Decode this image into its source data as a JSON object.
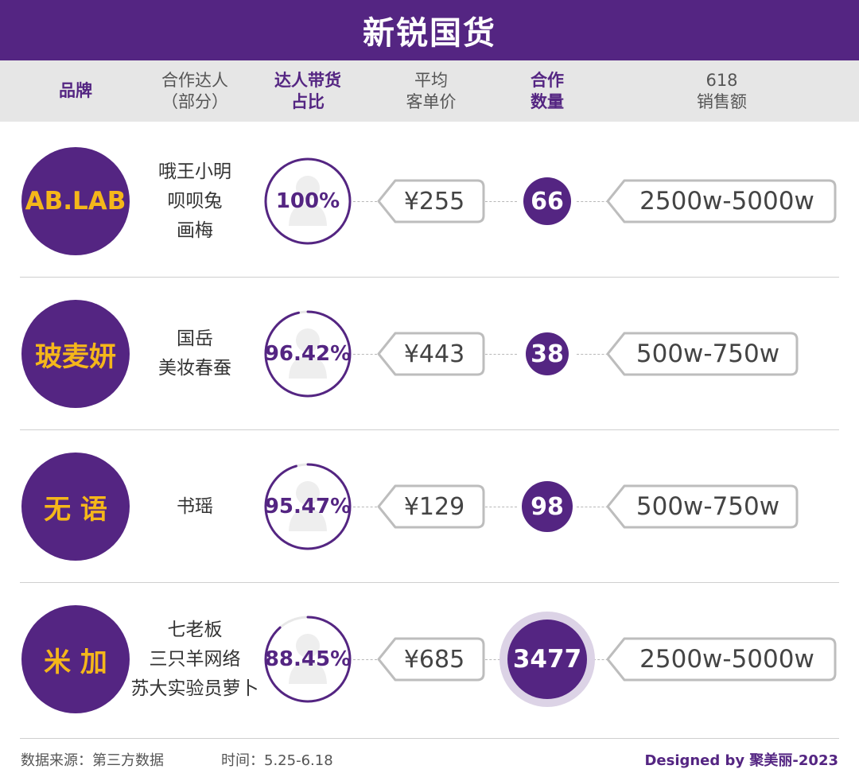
{
  "title": "新锐国货",
  "header": {
    "brand": [
      "品牌"
    ],
    "influencers": [
      "合作达人",
      "（部分）"
    ],
    "share": [
      "达人带货",
      "占比"
    ],
    "avg_price": [
      "平均",
      "客单价"
    ],
    "quantity": [
      "合作",
      "数量"
    ],
    "sales": [
      "618",
      "销售额"
    ]
  },
  "chart_data": {
    "type": "table",
    "title": "新锐国货",
    "columns": [
      "品牌",
      "合作达人（部分）",
      "达人带货占比",
      "平均客单价",
      "合作数量",
      "618销售额"
    ],
    "rows": [
      {
        "brand": "AB.LAB",
        "influencers": [
          "哦王小明",
          "呗呗兔",
          "画梅"
        ],
        "share_label": "100%",
        "share": 100,
        "price_label": "¥255",
        "price": 255,
        "quantity": 66,
        "quantity_label": "66",
        "sales": "2500w-5000w"
      },
      {
        "brand": "玻麦妍",
        "influencers": [
          "国岳",
          "美妆春蚕"
        ],
        "share_label": "96.42%",
        "share": 96.42,
        "price_label": "¥443",
        "price": 443,
        "quantity": 38,
        "quantity_label": "38",
        "sales": "500w-750w"
      },
      {
        "brand": "无 语",
        "influencers": [
          "书瑶"
        ],
        "share_label": "95.47%",
        "share": 95.47,
        "price_label": "¥129",
        "price": 129,
        "quantity": 98,
        "quantity_label": "98",
        "sales": "500w-750w"
      },
      {
        "brand": "米 加",
        "influencers": [
          "七老板",
          "三只羊网络",
          "苏大实验员萝卜"
        ],
        "share_label": "88.45%",
        "share": 88.45,
        "price_label": "¥685",
        "price": 685,
        "quantity": 3477,
        "quantity_label": "3477",
        "sales": "2500w-5000w"
      }
    ]
  },
  "footer": {
    "source": "数据来源：第三方数据",
    "period": "时间：5.25-6.18",
    "credit": "Designed by 聚美丽-2023"
  },
  "colors": {
    "primary": "#542582",
    "brand_text": "#f5b71a",
    "header_bg": "#e6e6e6",
    "halo": "#dcd3e6"
  }
}
